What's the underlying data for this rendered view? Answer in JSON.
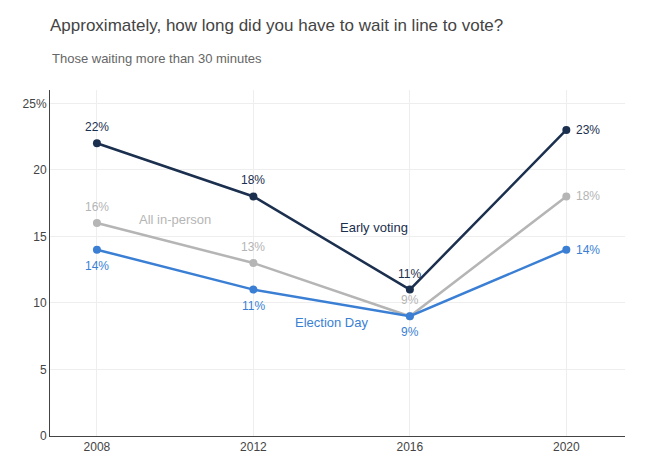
{
  "chart_data": {
    "type": "line",
    "title": "Approximately, how long did you have to wait in line to vote?",
    "subtitle": "Those waiting more than 30 minutes",
    "x": [
      2008,
      2012,
      2016,
      2020
    ],
    "series": [
      {
        "name": "Early voting",
        "color": "#1b2f4e",
        "values": [
          22,
          18,
          11,
          23
        ],
        "value_labels": [
          "22%",
          "18%",
          "11%",
          "23%"
        ]
      },
      {
        "name": "All in-person",
        "color": "#b5b5b5",
        "values": [
          16,
          13,
          9,
          18
        ],
        "value_labels": [
          "16%",
          "13%",
          "9%",
          "18%"
        ]
      },
      {
        "name": "Election Day",
        "color": "#3a7fd4",
        "values": [
          14,
          11,
          9,
          14
        ],
        "value_labels": [
          "14%",
          "11%",
          "9%",
          "14%"
        ]
      }
    ],
    "xlim": [
      2006.8,
      2021.5
    ],
    "xticks": [
      2008,
      2012,
      2016,
      2020
    ],
    "ylim": [
      0,
      26
    ],
    "yticks": [
      0,
      5,
      10,
      15,
      20,
      {
        "value": 25,
        "label": "25%"
      }
    ],
    "grid": true,
    "data_labels": true,
    "marker": "circle"
  }
}
